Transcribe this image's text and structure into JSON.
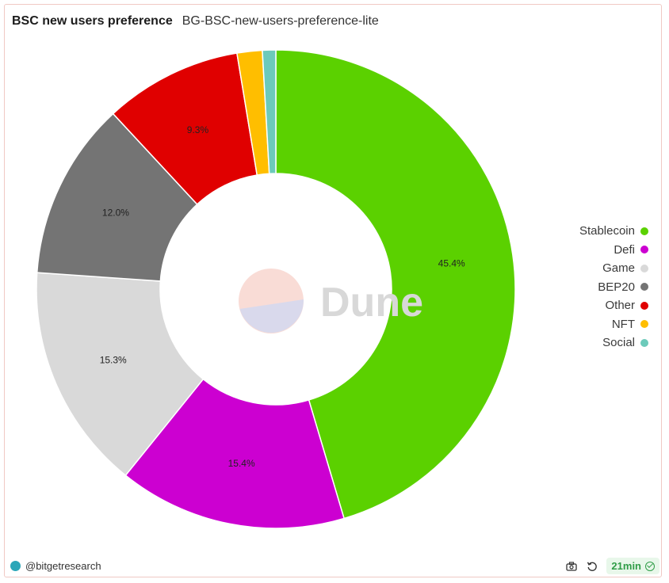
{
  "header": {
    "title": "BSC new users preference",
    "subtitle": "BG-BSC-new-users-preference-lite"
  },
  "watermark": {
    "text": "Dune"
  },
  "chart_data": {
    "type": "pie",
    "variant": "donut",
    "slices": [
      {
        "label": "Stablecoin",
        "value": 45.4,
        "color": "#5bd100",
        "show_label": true
      },
      {
        "label": "Defi",
        "value": 15.4,
        "color": "#cc00d1",
        "show_label": true
      },
      {
        "label": "Game",
        "value": 15.3,
        "color": "#d9d9d9",
        "show_label": true
      },
      {
        "label": "BEP20",
        "value": 12.0,
        "color": "#747474",
        "show_label": true
      },
      {
        "label": "Other",
        "value": 9.3,
        "color": "#e00000",
        "show_label": true
      },
      {
        "label": "NFT",
        "value": 1.7,
        "color": "#ffbe00",
        "show_label": false
      },
      {
        "label": "Social",
        "value": 0.9,
        "color": "#6ccaba",
        "show_label": false
      }
    ],
    "legend_position": "right"
  },
  "footer": {
    "author": "@bitgetresearch",
    "refresh_label": "21min"
  }
}
